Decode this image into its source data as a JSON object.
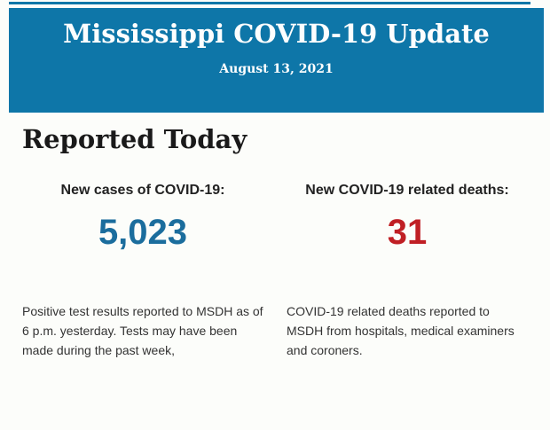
{
  "colors": {
    "header_bg": "#0e76a8",
    "cases_value": "#1b6d9d",
    "deaths_value": "#c01f24"
  },
  "header": {
    "title": "Mississippi COVID-19 Update",
    "date": "August 13, 2021"
  },
  "main": {
    "heading": "Reported Today",
    "stats": [
      {
        "label": "New cases of COVID-19:",
        "value": "5,023",
        "description": "Positive test results reported to MSDH as of 6 p.m. yesterday. Tests may have been made during the past week,"
      },
      {
        "label": "New COVID-19 related deaths:",
        "value": "31",
        "description": "COVID-19 related deaths reported to MSDH from hospitals, medical examiners and coroners."
      }
    ]
  }
}
